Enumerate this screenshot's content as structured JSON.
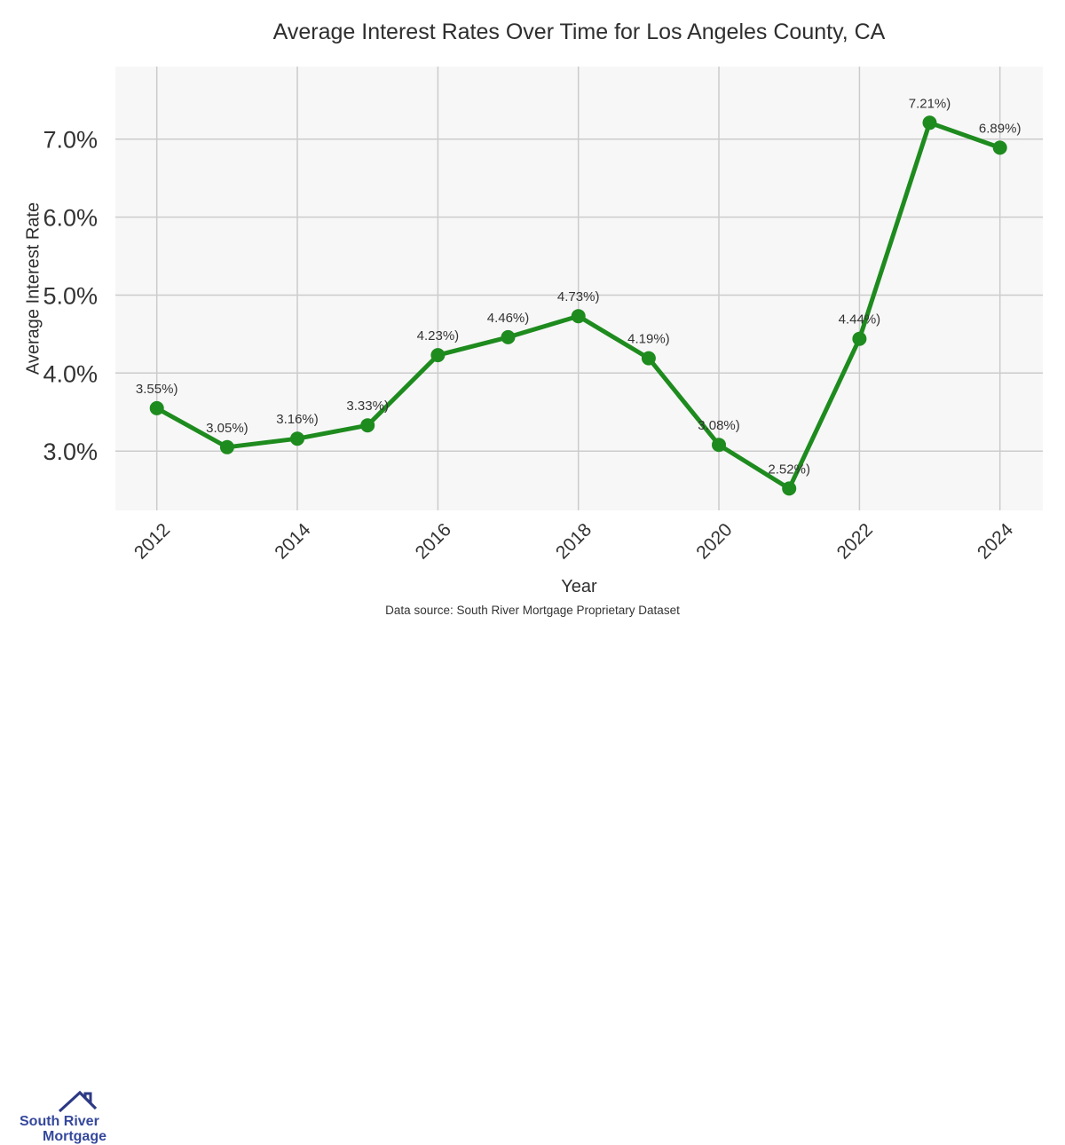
{
  "page": {
    "background": "#ffffff",
    "data_source": "Data source: South River Mortgage Proprietary Dataset"
  },
  "logo": {
    "line1": "South River",
    "line2": "Mortgage",
    "icon": "house-roof-with-chimney-icon",
    "text_color": "#35489c",
    "roof_color": "#2c3a85"
  },
  "chart_data": {
    "type": "line",
    "title": "Average Interest Rates Over Time for Los Angeles County, CA",
    "xlabel": "Year",
    "ylabel": "Average Interest Rate",
    "x": [
      2012,
      2013,
      2014,
      2015,
      2016,
      2017,
      2018,
      2019,
      2020,
      2021,
      2022,
      2023,
      2024
    ],
    "values": [
      3.55,
      3.05,
      3.16,
      3.33,
      4.23,
      4.46,
      4.73,
      4.19,
      3.08,
      2.52,
      4.44,
      7.21,
      6.89
    ],
    "point_labels": [
      "3.55%)",
      "3.05%)",
      "3.16%)",
      "3.33%)",
      "4.23%)",
      "4.46%)",
      "4.73%)",
      "4.19%)",
      "3.08%)",
      "2.52%)",
      "4.44%)",
      "7.21%)",
      "6.89%)"
    ],
    "xticks": [
      {
        "value": 2012,
        "label": "2012"
      },
      {
        "value": 2014,
        "label": "2014"
      },
      {
        "value": 2016,
        "label": "2016"
      },
      {
        "value": 2018,
        "label": "2018"
      },
      {
        "value": 2020,
        "label": "2020"
      },
      {
        "value": 2022,
        "label": "2022"
      },
      {
        "value": 2024,
        "label": "2024"
      }
    ],
    "yticks": [
      {
        "value": 3.0,
        "label": "3.0%"
      },
      {
        "value": 4.0,
        "label": "4.0%"
      },
      {
        "value": 5.0,
        "label": "5.0%"
      },
      {
        "value": 6.0,
        "label": "6.0%"
      },
      {
        "value": 7.0,
        "label": "7.0%"
      }
    ],
    "xlim": [
      2011.41,
      2024.61
    ],
    "ylim": [
      2.24,
      7.93
    ],
    "grid": true,
    "legend": false,
    "line_color": "#1e8b1e",
    "marker_color": "#1e8b1e",
    "plot_bg": "#f7f7f7",
    "grid_color": "#cccccc",
    "tick_color": "#333333",
    "label_color": "#333333"
  }
}
